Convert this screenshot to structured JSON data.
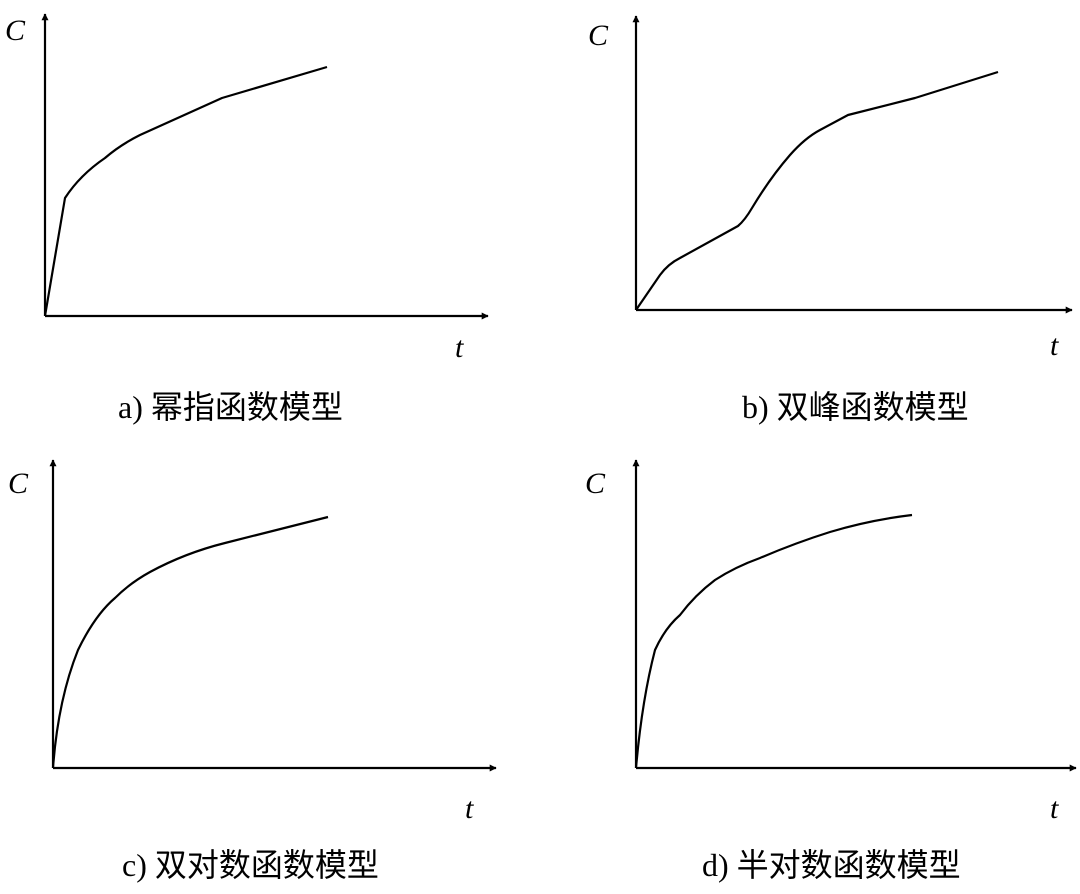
{
  "panels": [
    {
      "id": "a",
      "y_label": "C",
      "x_label": "t",
      "caption": "a)  幂指函数模型"
    },
    {
      "id": "b",
      "y_label": "C",
      "x_label": "t",
      "caption": "b)  双峰函数模型"
    },
    {
      "id": "c",
      "y_label": "C",
      "x_label": "t",
      "caption": "c)  双对数函数模型"
    },
    {
      "id": "d",
      "y_label": "C",
      "x_label": "t",
      "caption": "d)  半对数函数模型"
    }
  ],
  "line_color": "#000000"
}
